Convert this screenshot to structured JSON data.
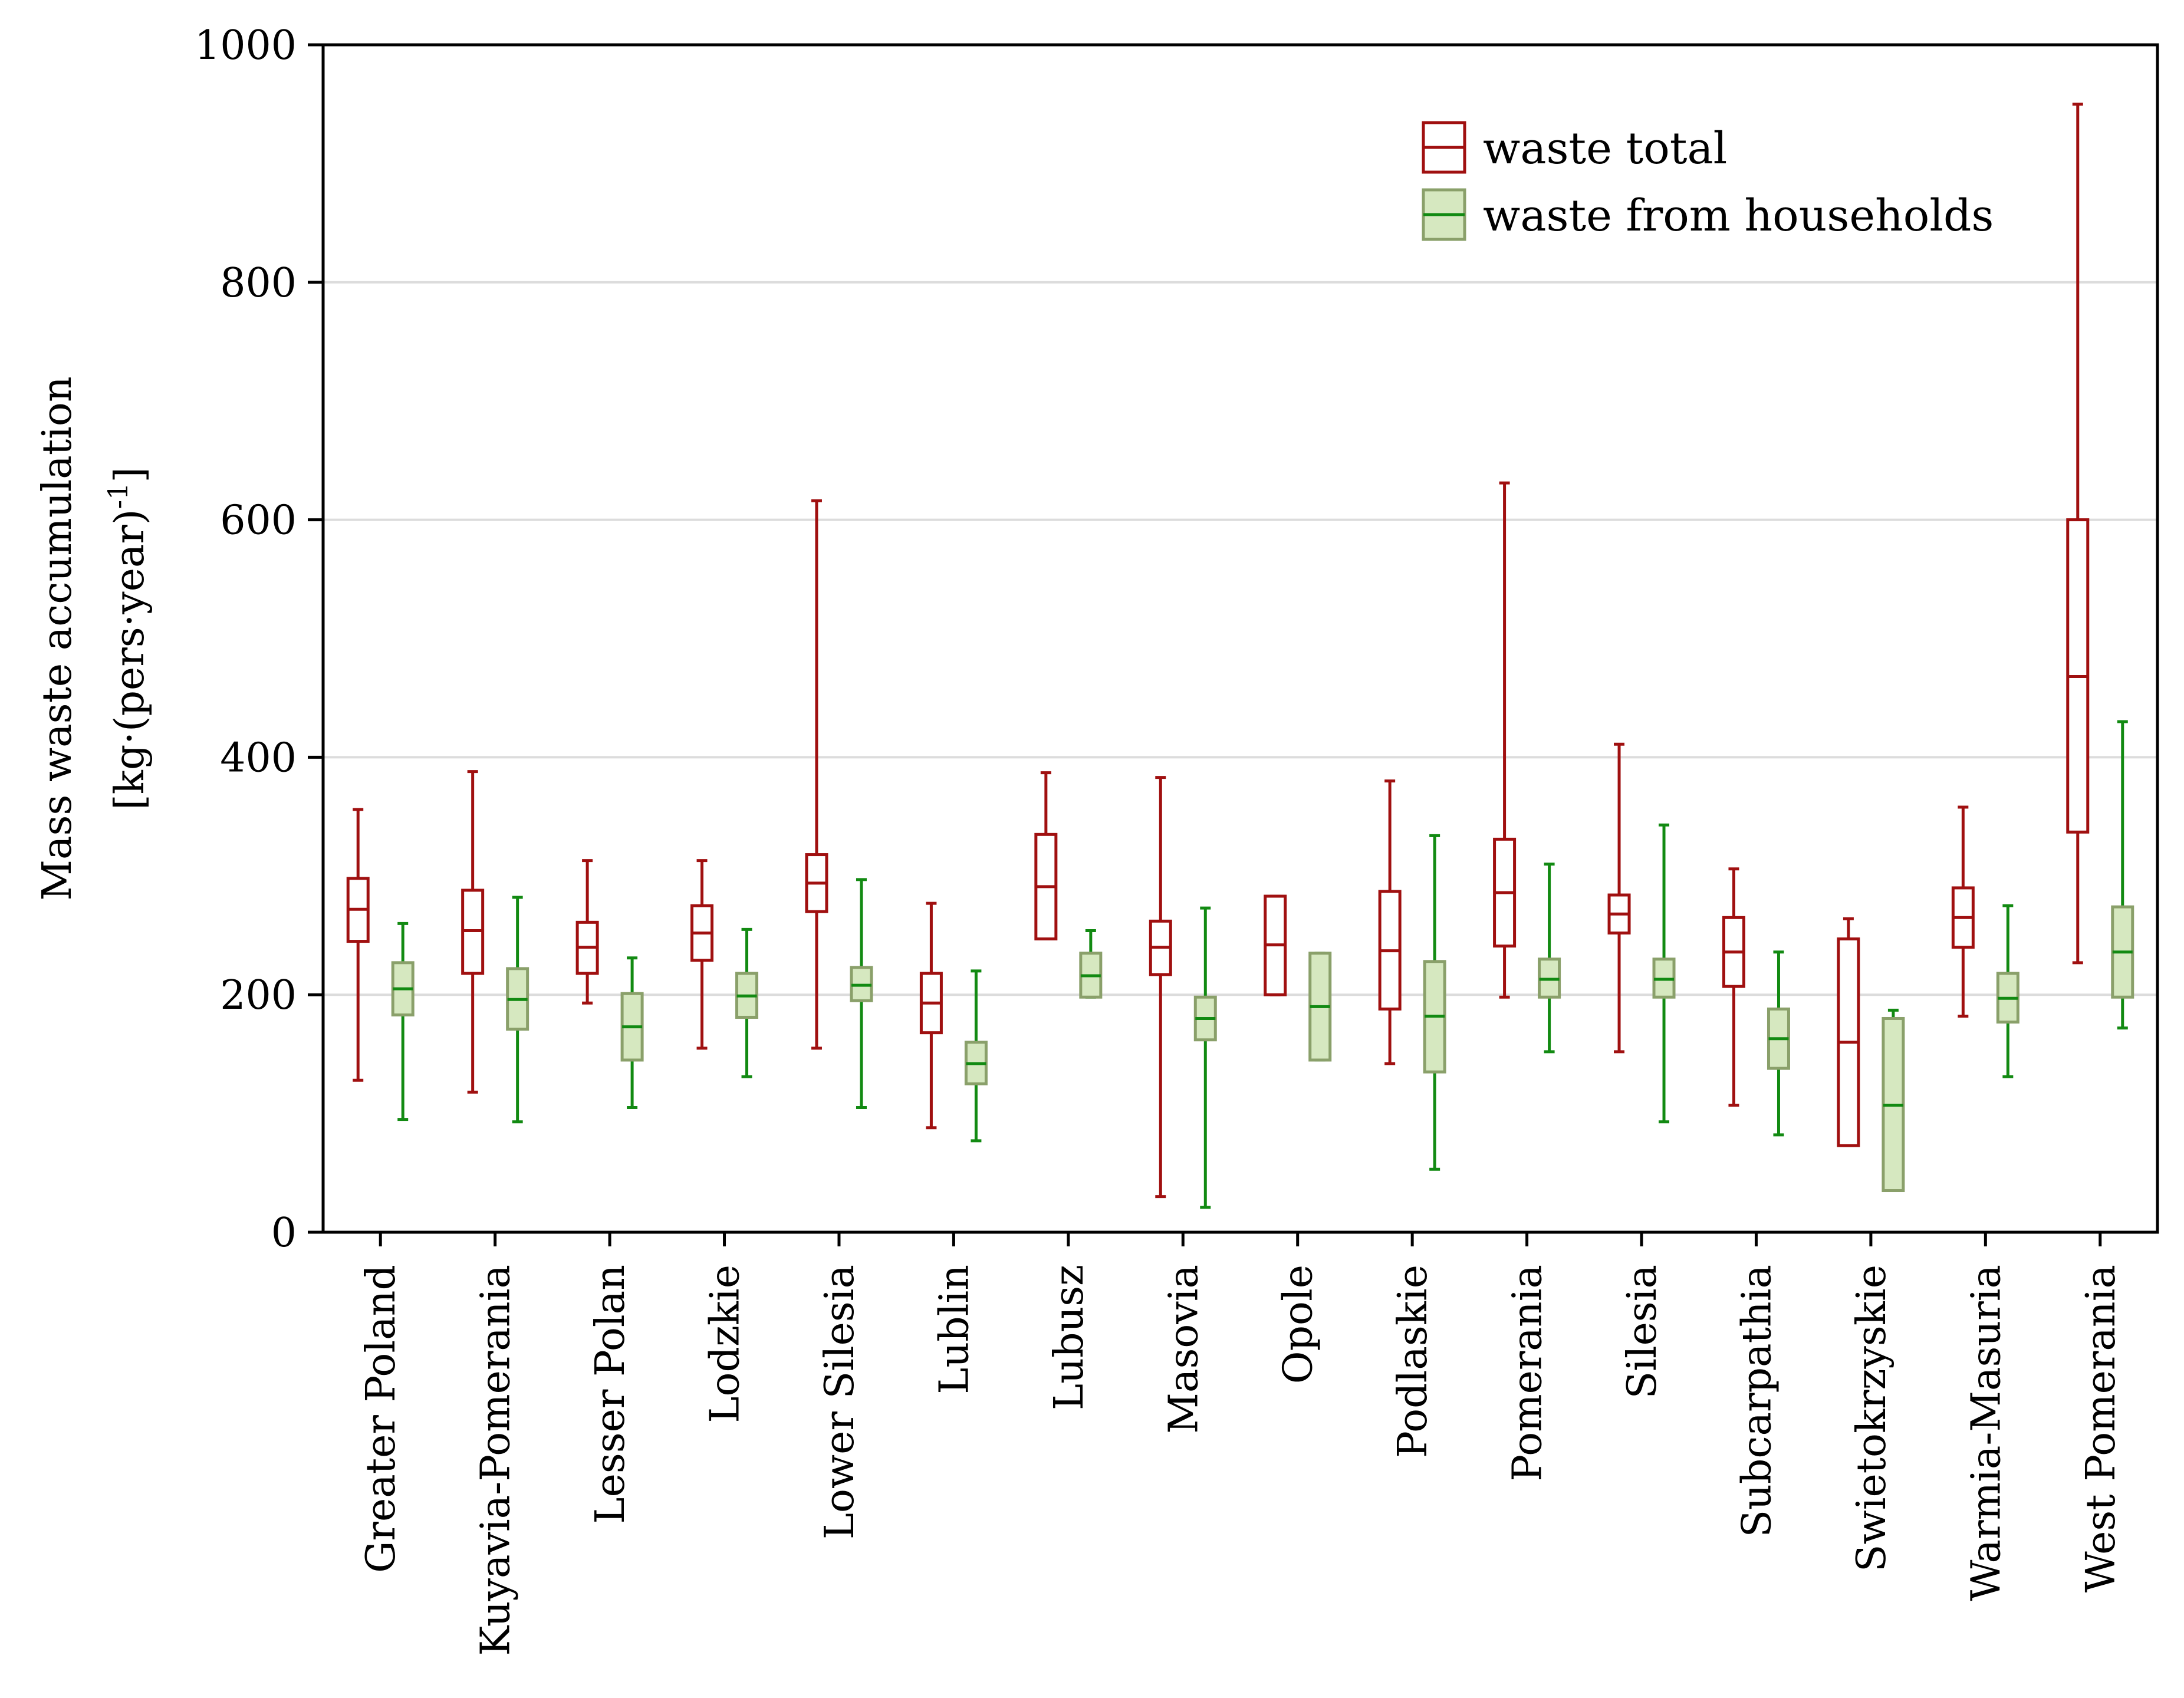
{
  "chart_data": {
    "type": "boxplot",
    "title": "",
    "xlabel": "",
    "ylabel": {
      "line1": "Mass waste accumulation",
      "line2_main": "[kg·(pers·year)",
      "line2_sup": "-1",
      "line2_end": "]"
    },
    "ylim": [
      0,
      1000
    ],
    "yticks": [
      0,
      200,
      400,
      600,
      800,
      1000
    ],
    "ytick_labels": [
      "0",
      "200",
      "400",
      "600",
      "800",
      "1000"
    ],
    "grid": true,
    "legend_position": "top-right",
    "categories": [
      "Greater Poland",
      "Kuyavia-Pomerania",
      "Lesser Polan",
      "Lodzkie",
      "Lower Silesia",
      "Lublin",
      "Lubusz",
      "Masovia",
      "Opole",
      "Podlaskie",
      "Pomerania",
      "Silesia",
      "Subcarpathia",
      "Swietokrzyskie",
      "Warmia-Masuria",
      "West Pomerania"
    ],
    "series": [
      {
        "name": "waste total",
        "stroke": "#a01010",
        "fill": "#ffffff",
        "whisker_color": "#a01010",
        "data": [
          {
            "min": 128,
            "q1": 245,
            "median": 272,
            "q3": 298,
            "max": 356
          },
          {
            "min": 118,
            "q1": 218,
            "median": 254,
            "q3": 288,
            "max": 388
          },
          {
            "min": 193,
            "q1": 218,
            "median": 240,
            "q3": 261,
            "max": 313
          },
          {
            "min": 155,
            "q1": 229,
            "median": 252,
            "q3": 275,
            "max": 313
          },
          {
            "min": 155,
            "q1": 270,
            "median": 294,
            "q3": 318,
            "max": 616
          },
          {
            "min": 88,
            "q1": 168,
            "median": 193,
            "q3": 218,
            "max": 277
          },
          {
            "min": 247,
            "q1": 247,
            "median": 291,
            "q3": 335,
            "max": 387
          },
          {
            "min": 30,
            "q1": 217,
            "median": 240,
            "q3": 262,
            "max": 383
          },
          {
            "min": 200,
            "q1": 200,
            "median": 242,
            "q3": 283,
            "max": 283
          },
          {
            "min": 142,
            "q1": 188,
            "median": 237,
            "q3": 287,
            "max": 380
          },
          {
            "min": 198,
            "q1": 241,
            "median": 286,
            "q3": 331,
            "max": 631
          },
          {
            "min": 152,
            "q1": 252,
            "median": 268,
            "q3": 284,
            "max": 411
          },
          {
            "min": 107,
            "q1": 207,
            "median": 236,
            "q3": 265,
            "max": 306
          },
          {
            "min": 73,
            "q1": 73,
            "median": 160,
            "q3": 247,
            "max": 264
          },
          {
            "min": 182,
            "q1": 240,
            "median": 265,
            "q3": 290,
            "max": 358
          },
          {
            "min": 227,
            "q1": 337,
            "median": 468,
            "q3": 600,
            "max": 950
          }
        ]
      },
      {
        "name": "waste from households",
        "stroke": "#8aa06a",
        "fill": "#d6e8c0",
        "whisker_color": "#128a12",
        "data": [
          {
            "min": 95,
            "q1": 183,
            "median": 205,
            "q3": 227,
            "max": 260
          },
          {
            "min": 93,
            "q1": 171,
            "median": 196,
            "q3": 222,
            "max": 282
          },
          {
            "min": 105,
            "q1": 145,
            "median": 173,
            "q3": 201,
            "max": 231
          },
          {
            "min": 131,
            "q1": 181,
            "median": 199,
            "q3": 218,
            "max": 255
          },
          {
            "min": 105,
            "q1": 195,
            "median": 208,
            "q3": 223,
            "max": 297
          },
          {
            "min": 77,
            "q1": 125,
            "median": 142,
            "q3": 160,
            "max": 220
          },
          {
            "min": 198,
            "q1": 198,
            "median": 216,
            "q3": 235,
            "max": 254
          },
          {
            "min": 21,
            "q1": 162,
            "median": 180,
            "q3": 198,
            "max": 273
          },
          {
            "min": 145,
            "q1": 145,
            "median": 190,
            "q3": 235,
            "max": 235
          },
          {
            "min": 53,
            "q1": 135,
            "median": 182,
            "q3": 228,
            "max": 334
          },
          {
            "min": 152,
            "q1": 198,
            "median": 213,
            "q3": 230,
            "max": 310
          },
          {
            "min": 93,
            "q1": 198,
            "median": 213,
            "q3": 230,
            "max": 343
          },
          {
            "min": 82,
            "q1": 138,
            "median": 163,
            "q3": 188,
            "max": 236
          },
          {
            "min": 35,
            "q1": 35,
            "median": 107,
            "q3": 180,
            "max": 187
          },
          {
            "min": 131,
            "q1": 177,
            "median": 197,
            "q3": 218,
            "max": 275
          },
          {
            "min": 172,
            "q1": 198,
            "median": 236,
            "q3": 274,
            "max": 430
          }
        ]
      }
    ]
  }
}
